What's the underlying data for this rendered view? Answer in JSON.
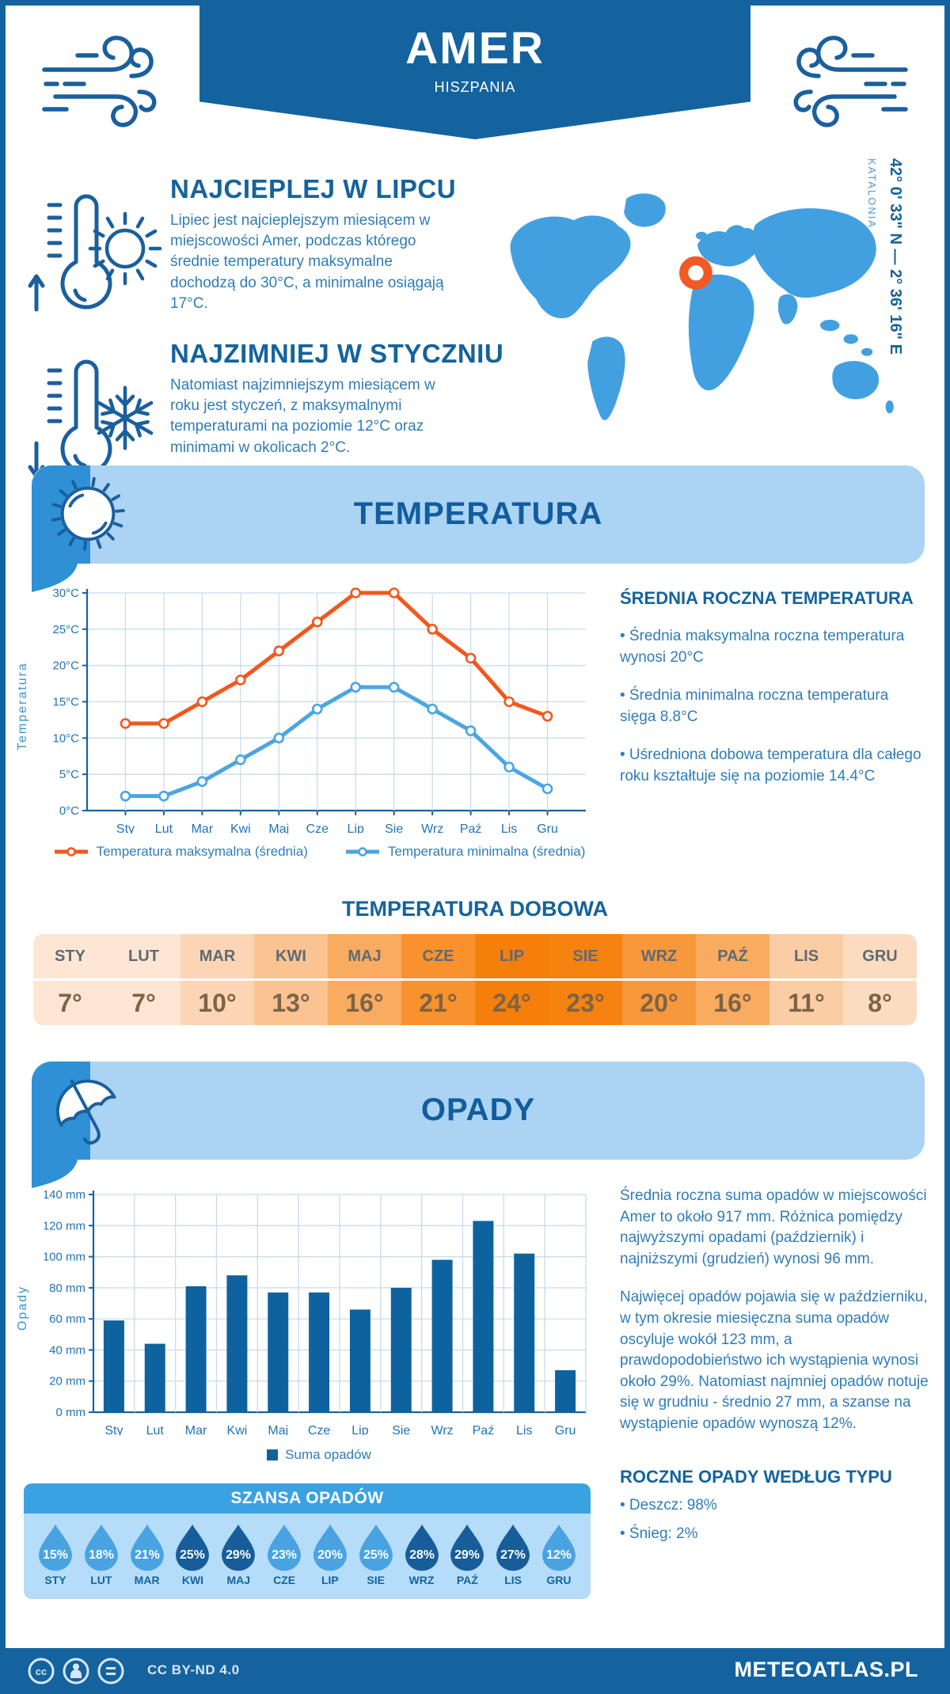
{
  "header": {
    "title": "AMER",
    "subtitle": "HISZPANIA"
  },
  "map": {
    "coords": "42° 0' 33\" N — 2° 36' 16\" E",
    "region": "KATALONIA",
    "marker_color": "#F15A24",
    "land_color": "#42A0E0"
  },
  "warmest": {
    "title": "NAJCIEPLEJ W LIPCU",
    "text": "Lipiec jest najcieplejszym miesiącem w miejscowości Amer, podczas którego średnie temperatury maksymalne dochodzą do 30°C, a minimalne osiągają 17°C."
  },
  "coldest": {
    "title": "NAJZIMNIEJ W STYCZNIU",
    "text": "Natomiast najzimniejszym miesiącem w roku jest styczeń, z maksymalnymi temperaturami na poziomie 12°C oraz minimami w okolicach 2°C."
  },
  "temperature_section": {
    "banner_title": "TEMPERATURA",
    "summary_title": "ŚREDNIA ROCZNA TEMPERATURA",
    "bullets": [
      "• Średnia maksymalna roczna temperatura wynosi 20°C",
      "• Średnia minimalna roczna temperatura sięga 8.8°C",
      "• Uśredniona dobowa temperatura dla całego roku kształtuje się na poziomie 14.4°C"
    ]
  },
  "precipitation_section": {
    "banner_title": "OPADY",
    "text1": "Średnia roczna suma opadów w miejscowości Amer to około 917 mm. Różnica pomiędzy najwyższymi opadami (październik) i najniższymi (grudzień) wynosi 96 mm.",
    "text2": "Najwięcej opadów pojawia się w październiku, w tym okresie miesięczna suma opadów oscyluje wokół 123 mm, a prawdopodobieństwo ich wystąpienia wynosi około 29%. Natomiast najmniej opadów notuje się w grudniu - średnio 27 mm, a szanse na wystąpienie opadów wynoszą 12%.",
    "type_title": "ROCZNE OPADY WEDŁUG TYPU",
    "type_bullets": [
      "• Deszcz: 98%",
      "• Śnieg: 2%"
    ]
  },
  "footer": {
    "license": "CC BY-ND 4.0",
    "site": "METEOATLAS.PL"
  },
  "icons": {
    "header_left": "wind-gust-icon",
    "header_right": "wind-gust-icon",
    "warmest": [
      "thermometer-up-icon",
      "sun-icon"
    ],
    "coldest": [
      "thermometer-down-icon",
      "snowflake-icon"
    ],
    "temperature_banner": "sun-icon",
    "precipitation_banner": "umbrella-icon",
    "map_marker": "location-ring-icon",
    "footer": [
      "cc-icon",
      "person-icon",
      "equals-icon"
    ]
  },
  "colors": {
    "navy": "#14639E",
    "heading_blue": "#15639C",
    "body_blue": "#2F7CB8",
    "banner_light": "#ABD4F4",
    "cap_blue": "#2F90D5",
    "accent_orange": "#F4571C",
    "min_line_blue": "#4BA5E2",
    "bar_blue": "#0E639F",
    "grid": "#C8DCEC",
    "axis": "#17639E",
    "chance_header": "#3BA2E2",
    "chance_bg": "#B5DCF8"
  },
  "chart_data": [
    {
      "type": "line",
      "title": "",
      "categories": [
        "Sty",
        "Lut",
        "Mar",
        "Kwi",
        "Maj",
        "Cze",
        "Lip",
        "Sie",
        "Wrz",
        "Paź",
        "Lis",
        "Gru"
      ],
      "series": [
        {
          "name": "Temperatura maksymalna (średnia)",
          "color": "#F4571C",
          "values": [
            12,
            12,
            15,
            18,
            22,
            26,
            30,
            30,
            25,
            21,
            15,
            13
          ]
        },
        {
          "name": "Temperatura minimalna (średnia)",
          "color": "#4BA5E2",
          "values": [
            2,
            2,
            4,
            7,
            10,
            14,
            17,
            17,
            14,
            11,
            6,
            3
          ]
        }
      ],
      "xlabel": "",
      "ylabel": "Temperatura",
      "ylim": [
        0,
        30
      ],
      "ytick_step": 5,
      "ytick_suffix": "°C",
      "grid": true,
      "legend_position": "bottom"
    },
    {
      "type": "table",
      "title": "TEMPERATURA DOBOWA",
      "columns": [
        "STY",
        "LUT",
        "MAR",
        "KWI",
        "MAJ",
        "CZE",
        "LIP",
        "SIE",
        "WRZ",
        "PAŹ",
        "LIS",
        "GRU"
      ],
      "values": [
        "7°",
        "7°",
        "10°",
        "13°",
        "16°",
        "21°",
        "24°",
        "23°",
        "20°",
        "16°",
        "11°",
        "8°"
      ],
      "cell_colors": [
        "#FDE7D4",
        "#FDE7D4",
        "#FCD5B5",
        "#FBC391",
        "#F9AB60",
        "#F9912D",
        "#F57F0A",
        "#F6830F",
        "#F8983C",
        "#F9AB60",
        "#FBCDA4",
        "#FCDCC0"
      ]
    },
    {
      "type": "bar",
      "title": "",
      "categories": [
        "Sty",
        "Lut",
        "Mar",
        "Kwi",
        "Maj",
        "Cze",
        "Lip",
        "Sie",
        "Wrz",
        "Paź",
        "Lis",
        "Gru"
      ],
      "series": [
        {
          "name": "Suma opadów",
          "color": "#0E639F",
          "values": [
            59,
            44,
            81,
            88,
            77,
            77,
            66,
            80,
            98,
            123,
            102,
            27
          ]
        }
      ],
      "xlabel": "",
      "ylabel": "Opady",
      "ylim": [
        0,
        140
      ],
      "ytick_step": 20,
      "ytick_suffix": " mm",
      "grid": true,
      "legend_position": "bottom"
    },
    {
      "type": "pictogram-drops",
      "title": "SZANSA OPADÓW",
      "categories": [
        "STY",
        "LUT",
        "MAR",
        "KWI",
        "MAJ",
        "CZE",
        "LIP",
        "SIE",
        "WRZ",
        "PAŹ",
        "LIS",
        "GRU"
      ],
      "values": [
        15,
        18,
        21,
        25,
        29,
        23,
        20,
        25,
        28,
        29,
        27,
        12
      ],
      "unit": "%",
      "drop_colors": [
        "#49A3E1",
        "#49A3E1",
        "#49A3E1",
        "#175D99",
        "#175D99",
        "#49A3E1",
        "#49A3E1",
        "#49A3E1",
        "#175D99",
        "#175D99",
        "#175D99",
        "#49A3E1"
      ]
    }
  ]
}
